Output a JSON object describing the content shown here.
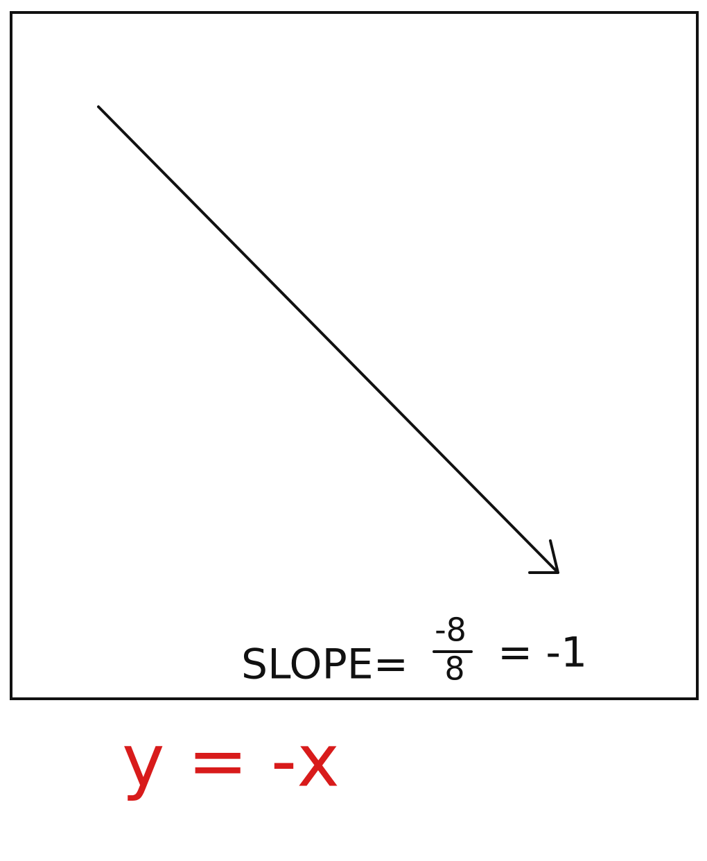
{
  "slope_label": "SLOPE=",
  "fraction": {
    "numerator": "-8",
    "denominator": "8"
  },
  "result": "= -1",
  "equation": "y = -x"
}
